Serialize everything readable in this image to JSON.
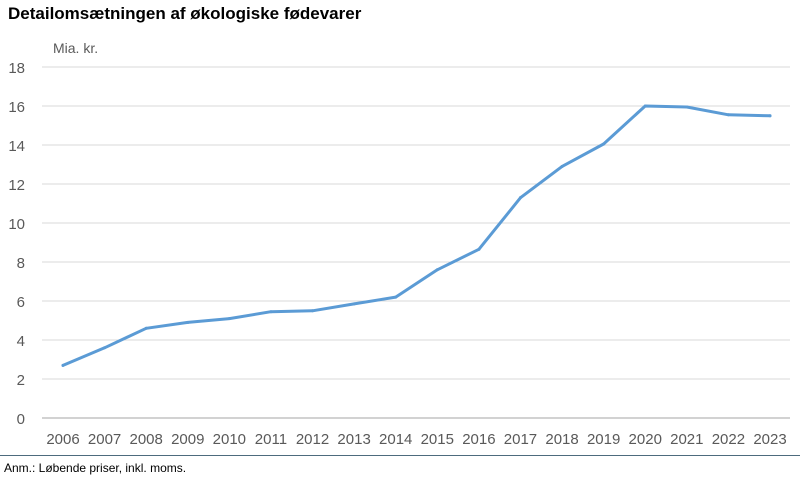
{
  "title": "Detailomsætningen af økologiske fødevarer",
  "note": "Anm.: Løbende priser, inkl. moms.",
  "chart_data": {
    "type": "line",
    "title": "Detailomsætningen af økologiske fødevarer",
    "ylabel": "Mia. kr.",
    "xlabel": "",
    "categories": [
      "2006",
      "2007",
      "2008",
      "2009",
      "2010",
      "2011",
      "2012",
      "2013",
      "2014",
      "2015",
      "2016",
      "2017",
      "2018",
      "2019",
      "2020",
      "2021",
      "2022",
      "2023"
    ],
    "series": [
      {
        "values": [
          2.7,
          3.6,
          4.6,
          4.9,
          5.1,
          5.45,
          5.5,
          5.85,
          6.2,
          7.6,
          8.65,
          11.3,
          12.9,
          14.05,
          16.0,
          15.95,
          15.55,
          15.5
        ]
      }
    ],
    "ylim": [
      0,
      18
    ],
    "yticks": [
      0,
      2,
      4,
      6,
      8,
      10,
      12,
      14,
      16,
      18
    ],
    "grid": true,
    "line_color": "#5b9bd5",
    "grid_color": "#d9d9d9",
    "axis_color": "#a6a6a6"
  }
}
